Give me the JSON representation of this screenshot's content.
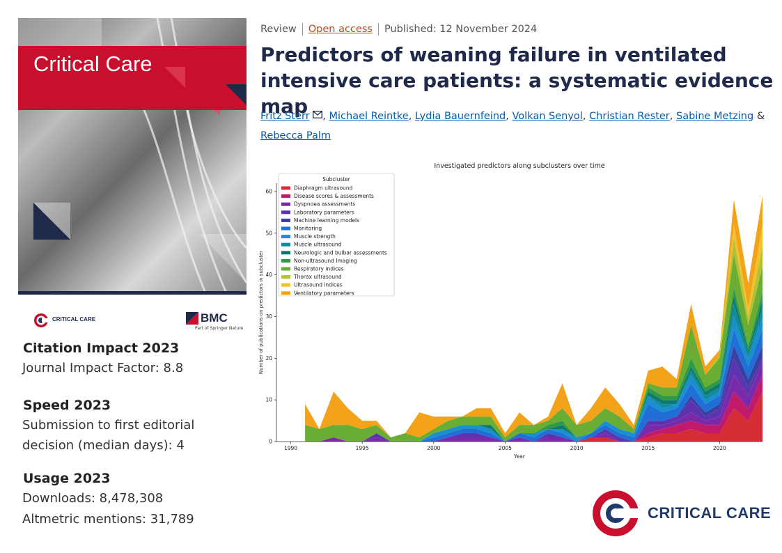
{
  "cover": {
    "title": "Critical Care"
  },
  "logos": {
    "journal_small": "CRITICAL CARE",
    "publisher": "BMC",
    "publisher_tagline": "Part of Springer Nature",
    "journal_big": "CRITICAL CARE"
  },
  "metrics": [
    {
      "heading": "Citation Impact 2023",
      "lines": [
        "Journal Impact Factor: 8.8"
      ]
    },
    {
      "heading": "Speed 2023",
      "lines": [
        "Submission to first editorial",
        "decision (median days): 4"
      ]
    },
    {
      "heading": "Usage 2023",
      "lines": [
        "Downloads: 8,478,308",
        "Altmetric mentions: 31,789"
      ]
    }
  ],
  "article": {
    "type": "Review",
    "access": "Open access",
    "published": "Published: 12 November 2024",
    "title": "Predictors of weaning failure in ventilated intensive care patients: a systematic evidence map",
    "authors": [
      "Fritz Sterr",
      "Michael Reintke",
      "Lydia Bauernfeind",
      "Volkan Senyol",
      "Christian Rester",
      "Sabine Metzing",
      "Rebecca Palm"
    ],
    "author_and": "&"
  },
  "colors": {
    "brand_red": "#c8102e",
    "navy": "#1f2a4a",
    "link": "#0a5aa6",
    "open_access": "#b54c1c"
  },
  "icons": {
    "corresponding_author": "envelope-icon"
  },
  "chart_data": {
    "type": "area",
    "stacked": true,
    "title": "Investigated predictors along subclusters over time",
    "xlabel": "Year",
    "ylabel": "Number of publications on predictors in subcluster",
    "xlim": [
      1989,
      2023
    ],
    "ylim": [
      0,
      62
    ],
    "xticks": [
      1990,
      1995,
      2000,
      2005,
      2010,
      2015,
      2020
    ],
    "yticks": [
      0,
      10,
      20,
      30,
      40,
      50,
      60
    ],
    "legend_title": "Subcluster",
    "legend_position": "top-left",
    "x": [
      1991,
      1992,
      1993,
      1994,
      1995,
      1996,
      1997,
      1998,
      1999,
      2000,
      2001,
      2002,
      2003,
      2004,
      2005,
      2006,
      2007,
      2008,
      2009,
      2010,
      2011,
      2012,
      2013,
      2014,
      2015,
      2016,
      2017,
      2018,
      2019,
      2020,
      2021,
      2022,
      2023
    ],
    "series": [
      {
        "name": "Diaphragm ultrasound",
        "color": "#d62c35",
        "values": [
          0,
          0,
          0,
          0,
          0,
          0,
          0,
          0,
          0,
          0,
          0,
          0,
          0,
          0,
          0,
          0,
          0,
          0,
          0,
          0,
          1,
          1,
          0,
          0,
          1,
          2,
          2,
          3,
          2,
          2,
          8,
          5,
          12
        ]
      },
      {
        "name": "Disease scores & assessments",
        "color": "#c11a6b",
        "values": [
          0,
          0,
          0,
          0,
          0,
          0,
          0,
          0,
          0,
          0,
          0,
          0,
          0,
          0,
          0,
          0,
          0,
          0,
          0,
          0,
          0,
          0,
          0,
          0,
          1,
          1,
          2,
          2,
          2,
          2,
          4,
          3,
          4
        ]
      },
      {
        "name": "Dyspnoea assessments",
        "color": "#7a2aa8",
        "values": [
          0,
          0,
          1,
          0,
          0,
          1,
          0,
          0,
          0,
          0,
          1,
          1,
          1,
          1,
          0,
          1,
          0,
          1,
          1,
          0,
          0,
          1,
          0,
          0,
          2,
          1,
          1,
          2,
          1,
          2,
          4,
          3,
          3
        ]
      },
      {
        "name": "Laboratory parameters",
        "color": "#5e33b0",
        "values": [
          0,
          0,
          0,
          0,
          0,
          1,
          0,
          0,
          0,
          0,
          0,
          1,
          1,
          0,
          0,
          0,
          0,
          1,
          0,
          0,
          0,
          1,
          1,
          0,
          1,
          1,
          1,
          3,
          1,
          2,
          4,
          2,
          1
        ]
      },
      {
        "name": "Machine learning models",
        "color": "#3b3fa0",
        "values": [
          0,
          0,
          0,
          0,
          0,
          0,
          0,
          0,
          0,
          0,
          0,
          0,
          0,
          0,
          0,
          0,
          0,
          0,
          0,
          0,
          0,
          0,
          0,
          0,
          0,
          0,
          0,
          1,
          1,
          1,
          3,
          2,
          3
        ]
      },
      {
        "name": "Monitoring",
        "color": "#1f6fd6",
        "values": [
          0,
          0,
          0,
          0,
          0,
          0,
          0,
          0,
          0,
          1,
          1,
          1,
          1,
          1,
          0,
          1,
          1,
          1,
          1,
          0,
          1,
          1,
          1,
          1,
          4,
          2,
          2,
          3,
          2,
          2,
          4,
          3,
          4
        ]
      },
      {
        "name": "Muscle strength",
        "color": "#1a8fd0",
        "values": [
          0,
          0,
          0,
          0,
          0,
          0,
          0,
          0,
          0,
          1,
          1,
          1,
          1,
          1,
          0,
          0,
          1,
          0,
          1,
          1,
          0,
          1,
          1,
          1,
          2,
          1,
          1,
          2,
          1,
          1,
          3,
          2,
          3
        ]
      },
      {
        "name": "Muscle ultrasound",
        "color": "#0f8aa0",
        "values": [
          0,
          0,
          0,
          0,
          0,
          0,
          0,
          0,
          0,
          0,
          0,
          0,
          0,
          0,
          0,
          0,
          0,
          0,
          0,
          0,
          0,
          0,
          0,
          0,
          0,
          1,
          0,
          1,
          1,
          1,
          3,
          1,
          2
        ]
      },
      {
        "name": "Neurologic and bulbar assessments",
        "color": "#0d7a70",
        "values": [
          0,
          0,
          0,
          0,
          0,
          0,
          0,
          0,
          0,
          0,
          0,
          0,
          0,
          1,
          0,
          0,
          0,
          0,
          1,
          0,
          0,
          0,
          0,
          0,
          1,
          1,
          1,
          1,
          1,
          1,
          2,
          1,
          2
        ]
      },
      {
        "name": "Non-ultrasound Imaging",
        "color": "#2e9a45",
        "values": [
          0,
          0,
          0,
          0,
          0,
          0,
          0,
          0,
          0,
          0,
          0,
          0,
          0,
          0,
          0,
          0,
          0,
          1,
          1,
          0,
          0,
          0,
          0,
          0,
          1,
          1,
          1,
          2,
          1,
          1,
          2,
          1,
          2
        ]
      },
      {
        "name": "Respiratory indices",
        "color": "#6aad35",
        "values": [
          4,
          3,
          3,
          4,
          3,
          2,
          1,
          2,
          1,
          1,
          2,
          2,
          2,
          2,
          1,
          2,
          2,
          1,
          3,
          3,
          3,
          3,
          3,
          1,
          1,
          2,
          2,
          8,
          3,
          5,
          8,
          5,
          6
        ]
      },
      {
        "name": "Thorax ultrasound",
        "color": "#b5c132",
        "values": [
          0,
          0,
          0,
          0,
          0,
          0,
          0,
          0,
          0,
          0,
          0,
          0,
          0,
          0,
          0,
          0,
          0,
          0,
          0,
          0,
          0,
          0,
          0,
          0,
          0,
          0,
          0,
          0,
          0,
          1,
          4,
          2,
          5
        ]
      },
      {
        "name": "Ultrasound indices",
        "color": "#f2c12e",
        "values": [
          0,
          0,
          0,
          0,
          0,
          0,
          0,
          0,
          0,
          0,
          0,
          0,
          0,
          0,
          0,
          0,
          0,
          0,
          0,
          0,
          0,
          0,
          0,
          0,
          0,
          0,
          0,
          0,
          0,
          0,
          3,
          2,
          5
        ]
      },
      {
        "name": "Ventilatory parameters",
        "color": "#f3a31a",
        "values": [
          5,
          0,
          8,
          4,
          2,
          1,
          0,
          0,
          6,
          3,
          1,
          0,
          2,
          2,
          1,
          3,
          0,
          1,
          6,
          0,
          3,
          5,
          3,
          1,
          3,
          5,
          2,
          5,
          2,
          1,
          6,
          6,
          7
        ]
      }
    ]
  }
}
